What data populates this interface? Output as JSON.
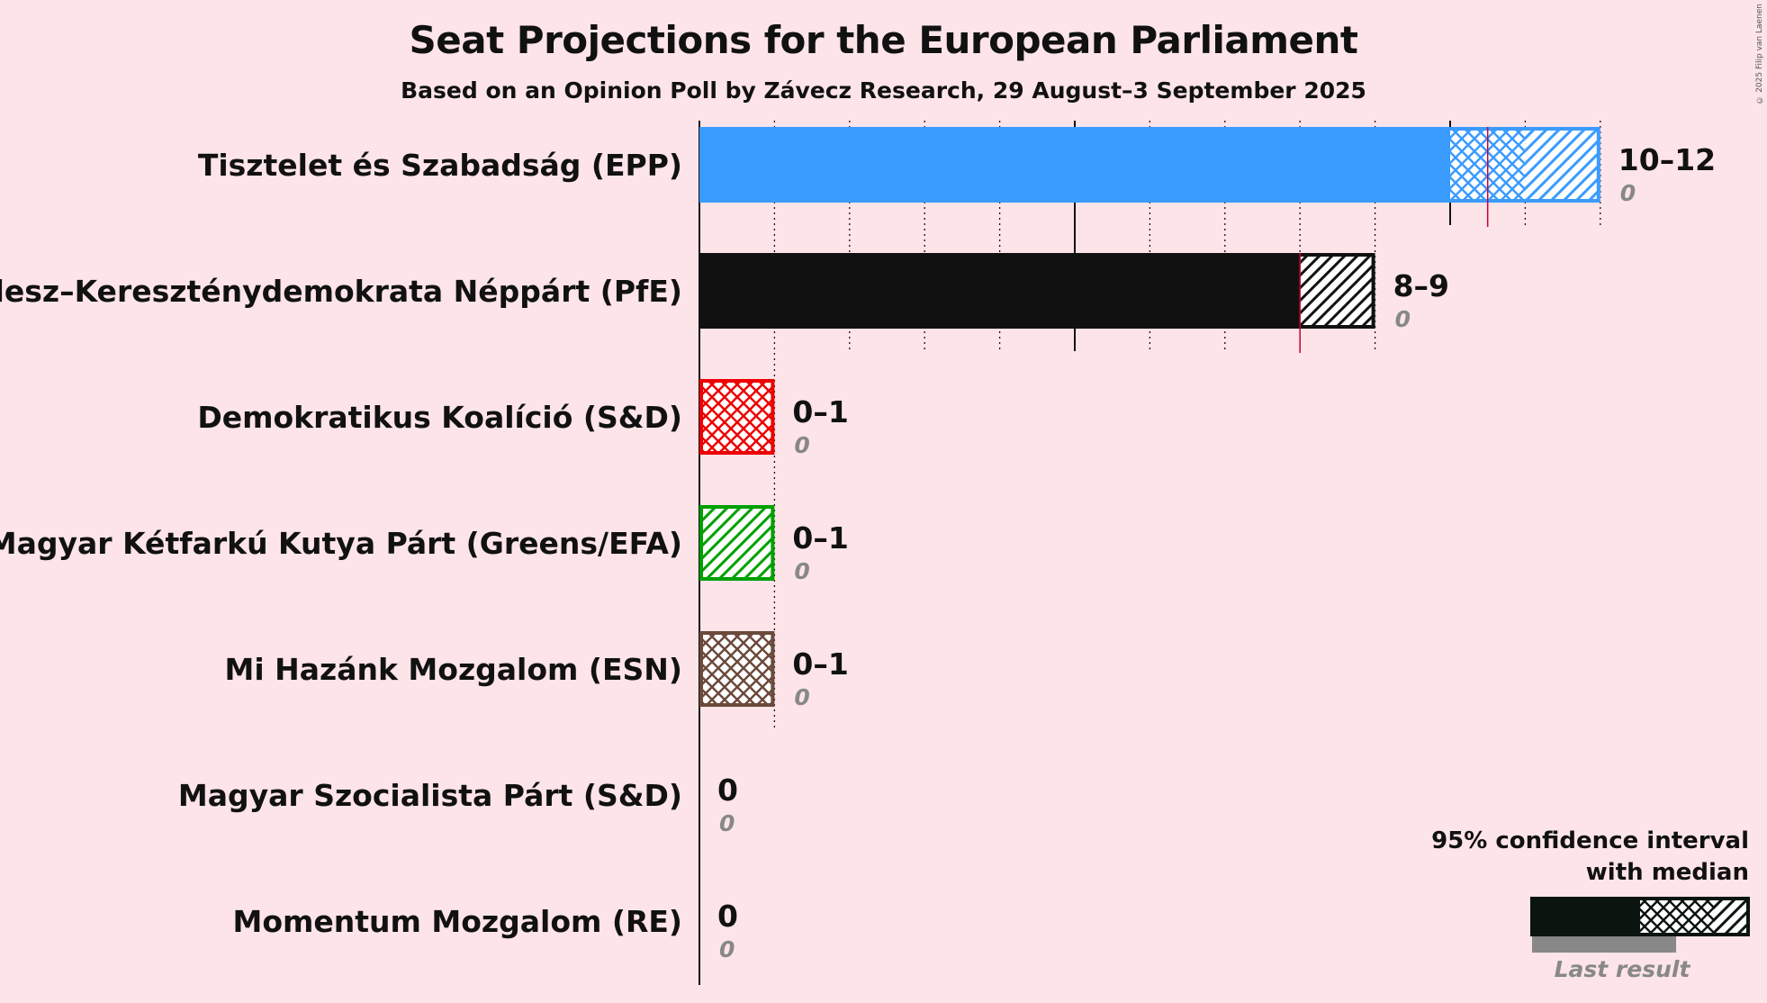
{
  "title": "Seat Projections for the European Parliament",
  "subtitle": "Based on an Opinion Poll by Závecz Research, 29 August–3 September 2025",
  "copyright": "© 2025 Filip van Laenen",
  "legend": {
    "line1": "95% confidence interval",
    "line2": "with median",
    "last_result": "Last result"
  },
  "chart_data": {
    "type": "bar",
    "orientation": "horizontal",
    "title": "Seat Projections for the European Parliament",
    "subtitle": "Based on an Opinion Poll by Závecz Research, 29 August–3 September 2025",
    "xlim": [
      0,
      12
    ],
    "grid": true,
    "legend_position": "bottom-right",
    "parties": [
      {
        "name": "Tisztelet és Szabadság (EPP)",
        "low": 10,
        "median": 10.5,
        "high": 12,
        "range_label": "10–12",
        "last_result": 0,
        "last_label": "0",
        "color": "#3a9bff"
      },
      {
        "name": "Fidesz–Kereszténydemokrata Néppárt (PfE)",
        "low": 8,
        "median": 8,
        "high": 9,
        "range_label": "8–9",
        "last_result": 0,
        "last_label": "0",
        "color": "#111111"
      },
      {
        "name": "Demokratikus Koalíció (S&D)",
        "low": 0,
        "median": 0,
        "high": 1,
        "range_label": "0–1",
        "last_result": 0,
        "last_label": "0",
        "color": "#ee0000",
        "median_pattern": "cross"
      },
      {
        "name": "Magyar Kétfarkú Kutya Párt (Greens/EFA)",
        "low": 0,
        "median": 0,
        "high": 1,
        "range_label": "0–1",
        "last_result": 0,
        "last_label": "0",
        "color": "#00a000",
        "median_pattern": "hatch"
      },
      {
        "name": "Mi Hazánk Mozgalom (ESN)",
        "low": 0,
        "median": 0,
        "high": 1,
        "range_label": "0–1",
        "last_result": 0,
        "last_label": "0",
        "color": "#6b4a3c",
        "median_pattern": "cross"
      },
      {
        "name": "Magyar Szocialista Párt (S&D)",
        "low": 0,
        "median": 0,
        "high": 0,
        "range_label": "0",
        "last_result": 0,
        "last_label": "0",
        "color": "#cc0000"
      },
      {
        "name": "Momentum Mozgalom (RE)",
        "low": 0,
        "median": 0,
        "high": 0,
        "range_label": "0",
        "last_result": 0,
        "last_label": "0",
        "color": "#8e6fce"
      }
    ]
  }
}
